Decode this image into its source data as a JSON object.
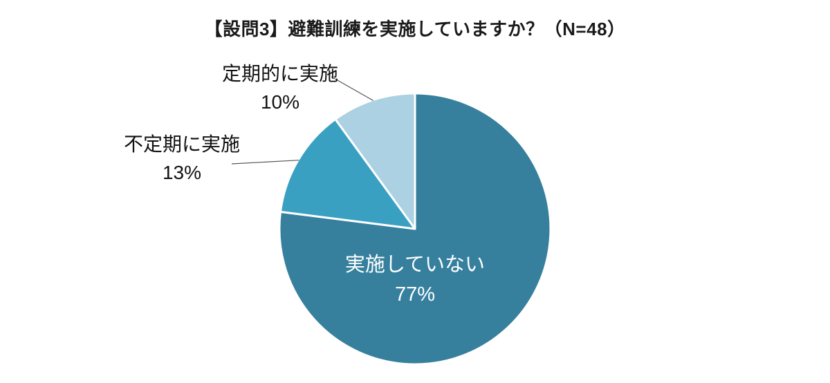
{
  "chart_data": {
    "type": "pie",
    "title": "【設問3】避難訓練を実施していますか？（N=48）",
    "n": 48,
    "start_angle_deg": 0,
    "direction": "clockwise",
    "legend": "none",
    "background": "#ffffff",
    "segments": [
      {
        "label": "実施していない",
        "value": 77,
        "pct_label": "77%",
        "color": "#36809E",
        "label_position": "inside"
      },
      {
        "label": "不定期に実施",
        "value": 13,
        "pct_label": "13%",
        "color": "#3AA0C1",
        "label_position": "outside-left"
      },
      {
        "label": "定期的に実施",
        "value": 10,
        "pct_label": "10%",
        "color": "#ABD1E3",
        "label_position": "outside-top-left"
      }
    ],
    "leader_line_color": "#555555",
    "slice_border_color": "#ffffff"
  }
}
